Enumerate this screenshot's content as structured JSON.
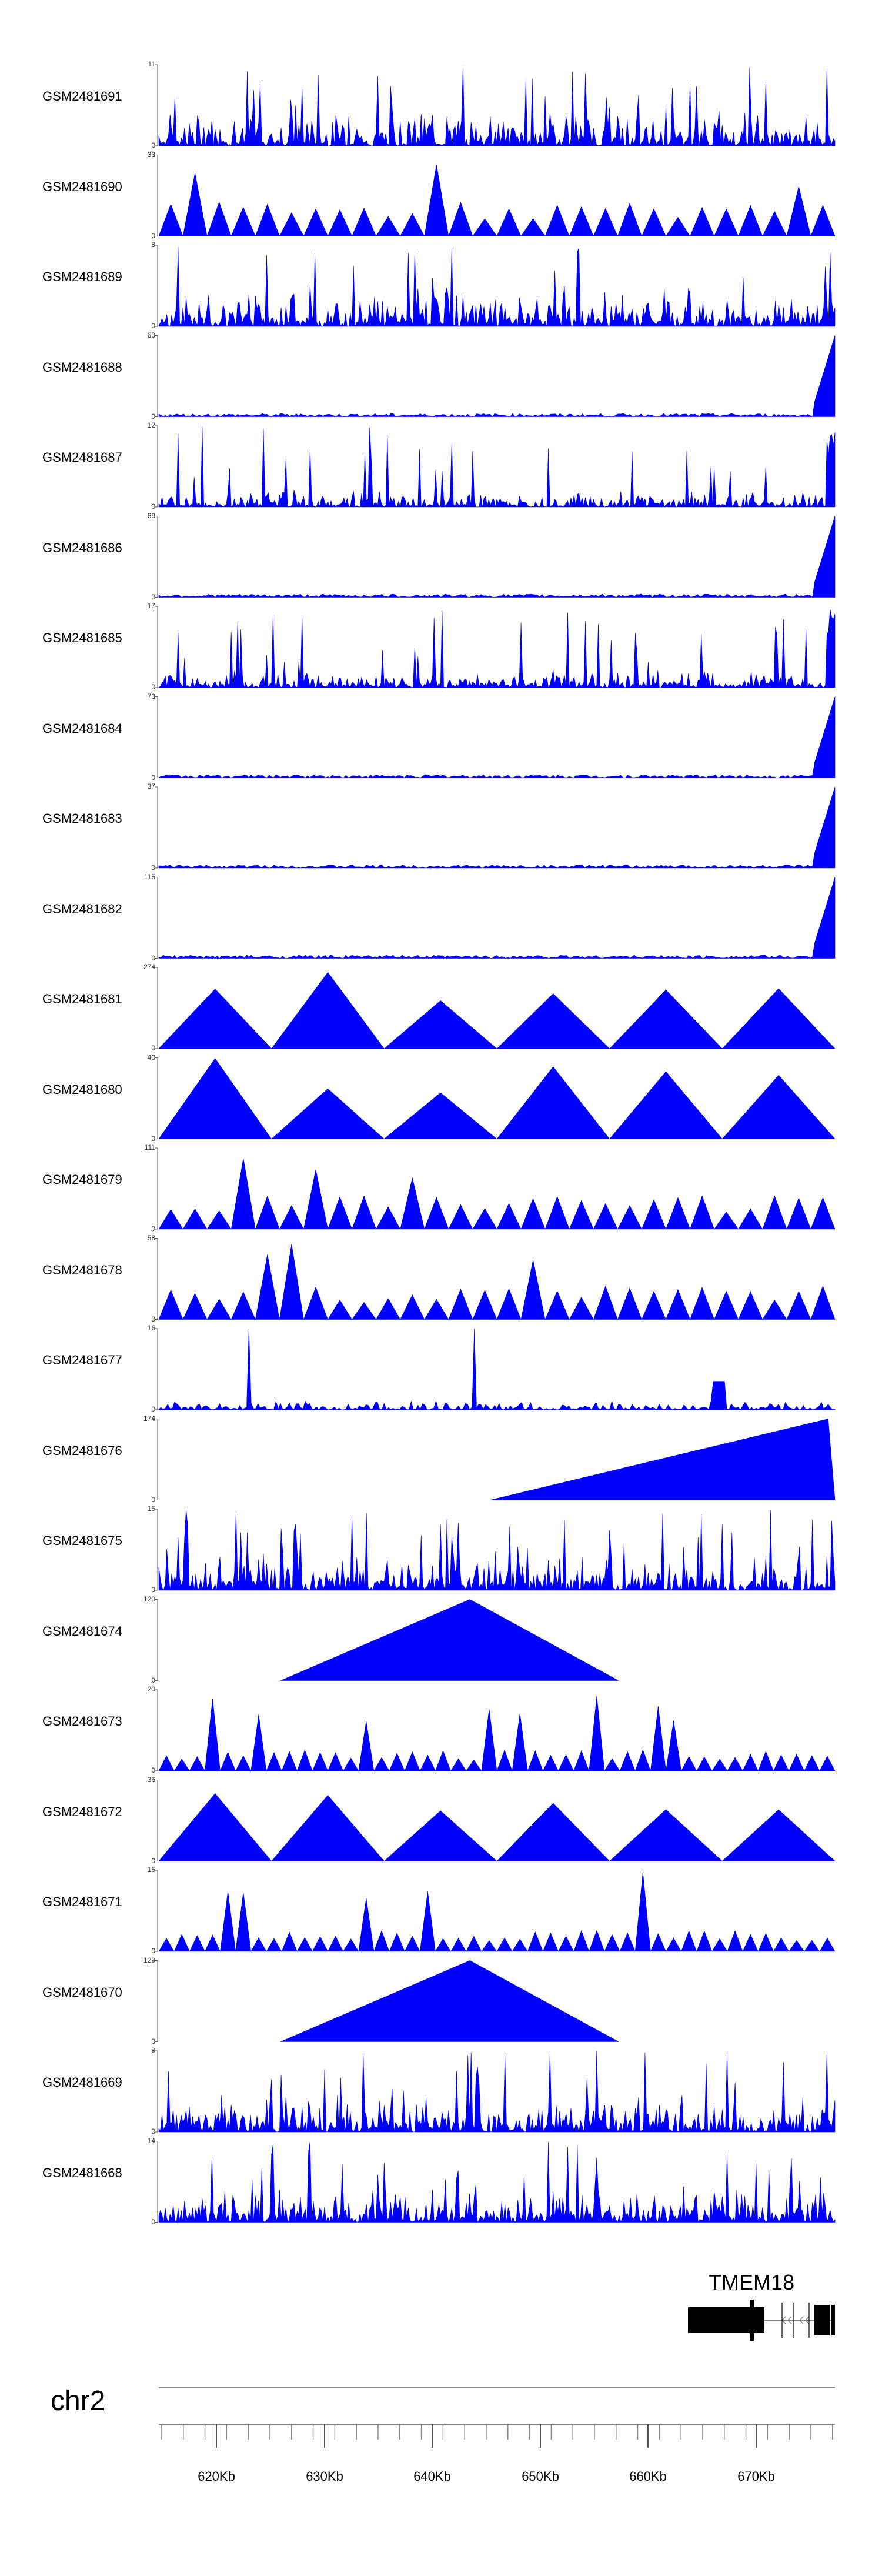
{
  "chart_data": {
    "type": "area",
    "tracks": [
      {
        "name": "GSM2481691",
        "ymax": "11",
        "ymin": "0",
        "pattern": "dense"
      },
      {
        "name": "GSM2481690",
        "ymax": "33",
        "ymin": "0",
        "pattern": "triangles"
      },
      {
        "name": "GSM2481689",
        "ymax": "8",
        "ymin": "0",
        "pattern": "dense"
      },
      {
        "name": "GSM2481688",
        "ymax": "60",
        "ymin": "0",
        "pattern": "flat-peak"
      },
      {
        "name": "GSM2481687",
        "ymax": "12",
        "ymin": "0",
        "pattern": "dense-low"
      },
      {
        "name": "GSM2481686",
        "ymax": "69",
        "ymin": "0",
        "pattern": "flat-peak"
      },
      {
        "name": "GSM2481685",
        "ymax": "17",
        "ymin": "0",
        "pattern": "dense-low"
      },
      {
        "name": "GSM2481684",
        "ymax": "73",
        "ymin": "0",
        "pattern": "flat-peak"
      },
      {
        "name": "GSM2481683",
        "ymax": "37",
        "ymin": "0",
        "pattern": "flat-peak"
      },
      {
        "name": "GSM2481682",
        "ymax": "115",
        "ymin": "0",
        "pattern": "flat-peak"
      },
      {
        "name": "GSM2481681",
        "ymax": "274",
        "ymin": "0",
        "pattern": "big-triangles"
      },
      {
        "name": "GSM2481680",
        "ymax": "40",
        "ymin": "0",
        "pattern": "big-triangles"
      },
      {
        "name": "GSM2481679",
        "ymax": "111",
        "ymin": "0",
        "pattern": "triangles"
      },
      {
        "name": "GSM2481678",
        "ymax": "58",
        "ymin": "0",
        "pattern": "triangles"
      },
      {
        "name": "GSM2481677",
        "ymax": "16",
        "ymin": "0",
        "pattern": "sparse-spikes"
      },
      {
        "name": "GSM2481676",
        "ymax": "174",
        "ymin": "0",
        "pattern": "ramp"
      },
      {
        "name": "GSM2481675",
        "ymax": "15",
        "ymin": "0",
        "pattern": "dense"
      },
      {
        "name": "GSM2481674",
        "ymax": "120",
        "ymin": "0",
        "pattern": "single-triangle"
      },
      {
        "name": "GSM2481673",
        "ymax": "20",
        "ymin": "0",
        "pattern": "small-triangles"
      },
      {
        "name": "GSM2481672",
        "ymax": "36",
        "ymin": "0",
        "pattern": "big-triangles"
      },
      {
        "name": "GSM2481671",
        "ymax": "15",
        "ymin": "0",
        "pattern": "small-triangles"
      },
      {
        "name": "GSM2481670",
        "ymax": "129",
        "ymin": "0",
        "pattern": "single-triangle"
      },
      {
        "name": "GSM2481669",
        "ymax": "9",
        "ymin": "0",
        "pattern": "dense"
      },
      {
        "name": "GSM2481668",
        "ymax": "14",
        "ymin": "0",
        "pattern": "dense"
      }
    ],
    "x_axis": {
      "chromosome": "chr2",
      "ticks": [
        "620Kb",
        "630Kb",
        "640Kb",
        "650Kb",
        "660Kb",
        "670Kb"
      ]
    },
    "gene": {
      "name": "TMEM18"
    },
    "fill_color": "#0000ff",
    "grid": false
  }
}
